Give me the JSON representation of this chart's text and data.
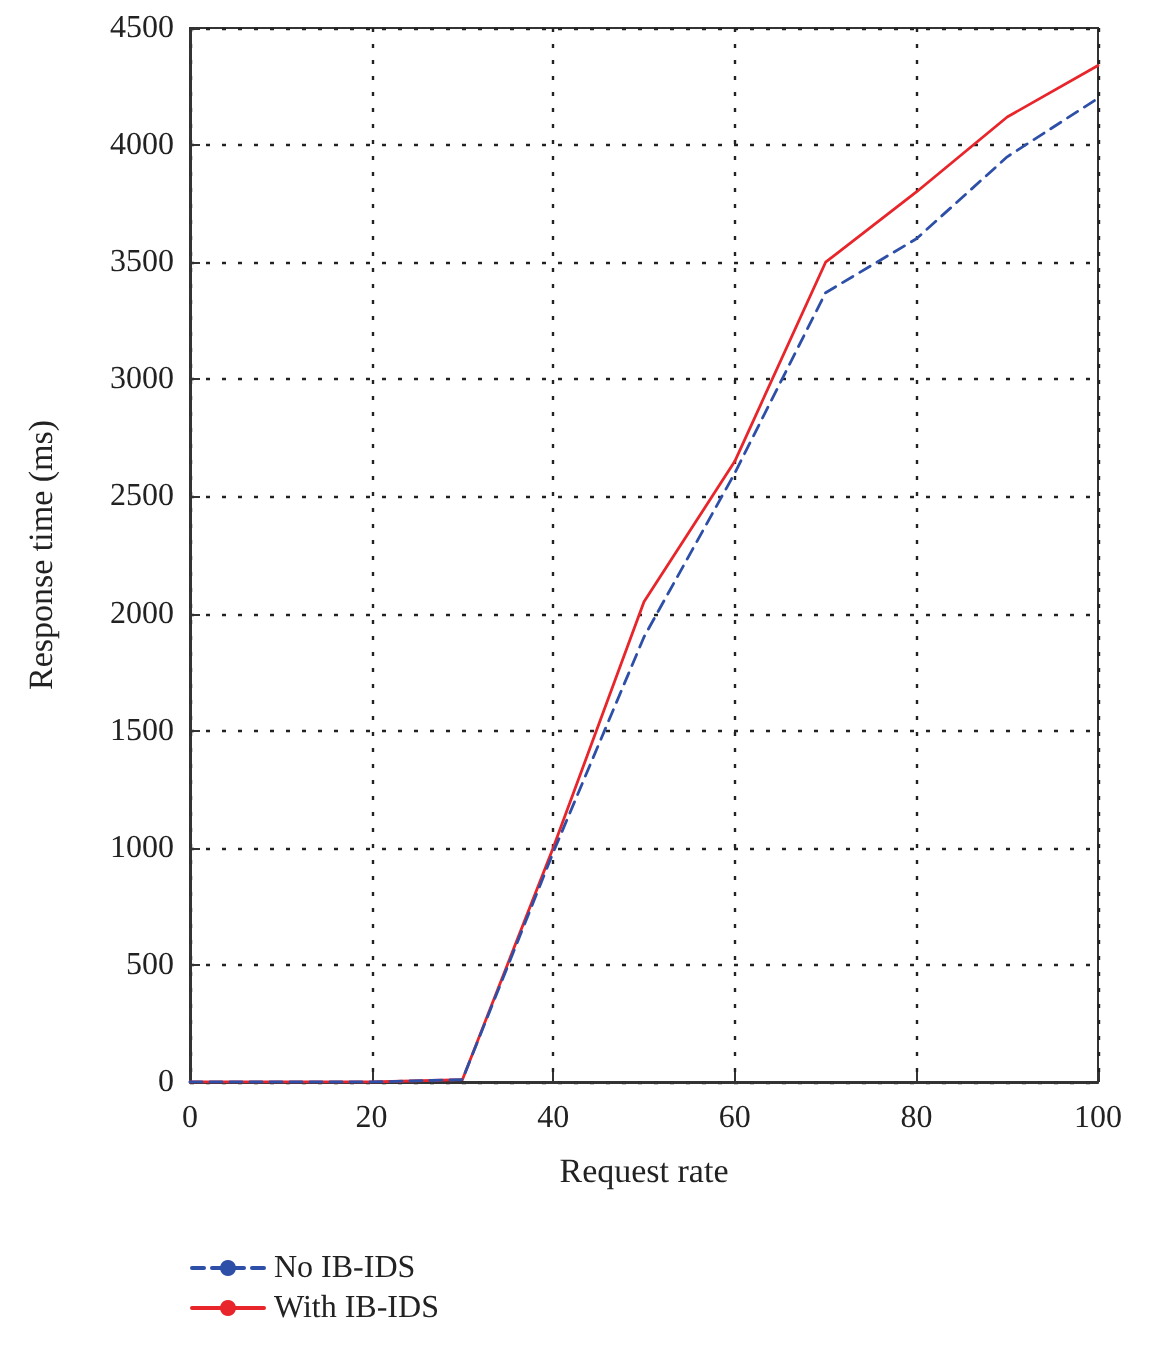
{
  "chart_data": {
    "type": "line",
    "xlabel": "Request rate",
    "ylabel": "Response time (ms)",
    "x": [
      0,
      10,
      20,
      30,
      40,
      50,
      60,
      70,
      80,
      90,
      100
    ],
    "series": [
      {
        "name": "No IB-IDS",
        "color": "#2e4fa8",
        "line_style": "dashed",
        "values": [
          0,
          0,
          0,
          10,
          980,
          1900,
          2600,
          3370,
          3600,
          3950,
          4200
        ]
      },
      {
        "name": "With IB-IDS",
        "color": "#e8252a",
        "line_style": "solid",
        "values": [
          0,
          0,
          0,
          10,
          1000,
          2050,
          2650,
          3500,
          3800,
          4120,
          4340
        ]
      }
    ],
    "xlim": [
      0,
      100
    ],
    "xticks": [
      0,
      20,
      40,
      60,
      80,
      100
    ],
    "ylim": [
      0,
      4500
    ],
    "yticks": [
      0,
      500,
      1000,
      1500,
      2000,
      2500,
      3000,
      3500,
      4000,
      4500
    ],
    "grid": true,
    "legend": "bottom left",
    "marker": "none"
  }
}
